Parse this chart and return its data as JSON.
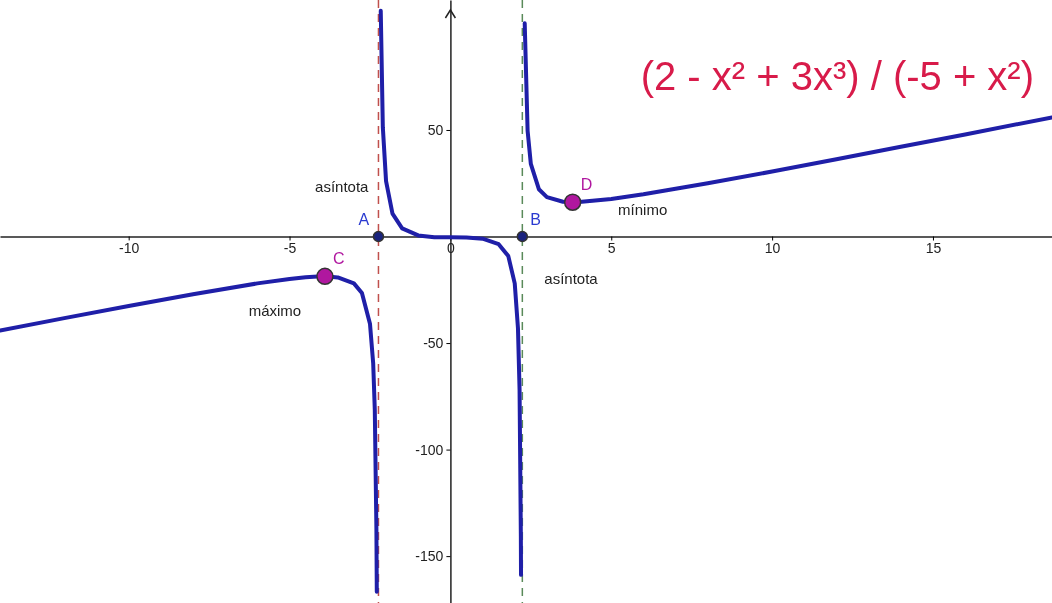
{
  "chart_data": {
    "type": "line",
    "title": "(2 - x² + 3x³) / (-5 + x²)",
    "xlim": [
      -14,
      18.7
    ],
    "ylim": [
      -172,
      111
    ],
    "xticks": [
      -10,
      -5,
      0,
      5,
      10,
      15
    ],
    "yticks": [
      -150,
      -100,
      -50,
      50
    ],
    "grid": false,
    "legend": false,
    "series": [
      {
        "color": "#1f1fa8",
        "x": [
          -14,
          -12,
          -10,
          -8,
          -6,
          -5,
          -4.5,
          -4,
          -3.9,
          -3.8,
          -3.5,
          -3,
          -2.75,
          -2.5,
          -2.4,
          -2.35,
          -2.3,
          -2.29,
          -2.288
        ],
        "values": [
          -44.1,
          -38.3,
          -32.6,
          -27.1,
          -22,
          -19.9,
          -19.1,
          -18.7,
          -18.7,
          -18.8,
          -19.2,
          -22,
          -26.5,
          -40.9,
          -59.5,
          -81.3,
          -137.2,
          -160.9,
          -166.7
        ]
      },
      {
        "color": "#1f1fa8",
        "x": [
          -2.165,
          -2.1,
          -2,
          -1.8,
          -1.5,
          -1,
          -0.5,
          0,
          0.5,
          1,
          1.5,
          1.8,
          2,
          2.1,
          2.15,
          2.19,
          2.195
        ],
        "values": [
          105.9,
          51.2,
          26,
          10.7,
          3.8,
          0.5,
          -0.3,
          -0.4,
          -0.5,
          -1,
          -3.6,
          -9.2,
          -22,
          -43,
          -72,
          -140.8,
          -158.8
        ]
      },
      {
        "color": "#1f1fa8",
        "x": [
          2.31,
          2.4,
          2.5,
          2.75,
          3,
          3.5,
          3.8,
          4,
          5,
          6,
          8,
          10,
          12,
          14,
          16,
          18.7
        ],
        "values": [
          100.1,
          49.6,
          34.1,
          22.2,
          18.5,
          16.3,
          16.1,
          16.2,
          17.6,
          19.8,
          25,
          30.5,
          36.3,
          42.1,
          47.9,
          55.9
        ]
      },
      {
        "type": "scatter",
        "marker": "circle",
        "name": "A",
        "color": "#1a237e",
        "x": [
          -2.236
        ],
        "values": [
          0
        ]
      },
      {
        "type": "scatter",
        "marker": "circle",
        "name": "B",
        "color": "#1a237e",
        "x": [
          2.236
        ],
        "values": [
          0
        ]
      },
      {
        "type": "scatter",
        "marker": "circle",
        "name": "C",
        "color": "#b0179f",
        "x": [
          -3.9
        ],
        "values": [
          -18.7
        ]
      },
      {
        "type": "scatter",
        "marker": "circle",
        "name": "D",
        "color": "#b0179f",
        "x": [
          3.8
        ],
        "values": [
          16.1
        ]
      }
    ],
    "ref_lines": [
      {
        "axis": "x",
        "value": -2.236,
        "label": "asíntota",
        "color": "#c0504d",
        "line_style": "dashed"
      },
      {
        "axis": "x",
        "value": 2.236,
        "label": "asíntota",
        "color": "#5a8a5a",
        "line_style": "dashed"
      }
    ],
    "annotations": [
      {
        "text": "máximo",
        "x": -3.9,
        "y": -18.7
      },
      {
        "text": "mínimo",
        "x": 3.8,
        "y": 16.1
      }
    ]
  }
}
